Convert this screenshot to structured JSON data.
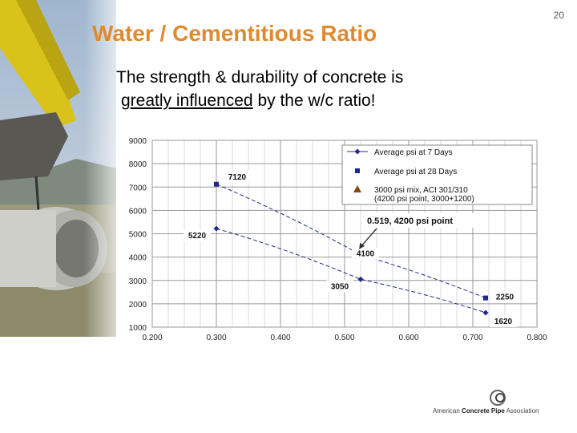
{
  "slide": {
    "number": "20",
    "title": "Water / Cementitious Ratio",
    "subtitle_line1": "The strength & durability of concrete is",
    "subtitle_line2_underlined": "greatly influenced",
    "subtitle_line2_rest": " by the w/c ratio!"
  },
  "logo": {
    "prefix": "American ",
    "bold": "Concrete Pipe",
    "suffix": " Association"
  },
  "colors": {
    "title": "#E08A2E",
    "series_7day": "#1F2A8C",
    "series_28day": "#1F2A8C",
    "point_3000mix": "#8B4513"
  },
  "chart_data": {
    "type": "line",
    "title": "",
    "xlabel": "",
    "ylabel": "",
    "xlim": [
      0.2,
      0.8
    ],
    "ylim": [
      1000,
      9000
    ],
    "x_ticks": [
      "0.200",
      "0.300",
      "0.400",
      "0.500",
      "0.600",
      "0.700",
      "0.800"
    ],
    "y_ticks": [
      "1000",
      "2000",
      "3000",
      "4000",
      "5000",
      "6000",
      "7000",
      "8000",
      "9000"
    ],
    "grid": true,
    "legend_position": "top-right",
    "series": [
      {
        "name": "Average psi at 7 Days",
        "marker": "diamond",
        "x": [
          0.3,
          0.525,
          0.72
        ],
        "y": [
          5220,
          3050,
          1620
        ],
        "labels": [
          "5220",
          "3050",
          "1620"
        ]
      },
      {
        "name": "Average psi at 28 Days",
        "marker": "square",
        "x": [
          0.3,
          0.525,
          0.72
        ],
        "y": [
          7120,
          4100,
          2250
        ],
        "labels": [
          "7120",
          "4100",
          "2250"
        ]
      },
      {
        "name": "3000 psi mix, ACI 301/310",
        "name_line2": "(4200 psi point, 3000+1200)",
        "marker": "triangle",
        "x": [
          0.519
        ],
        "y": [
          4200
        ],
        "labels": []
      }
    ],
    "annotations": [
      {
        "text": "0.519, 4200 psi point",
        "x": 0.519,
        "y": 4200
      }
    ]
  }
}
